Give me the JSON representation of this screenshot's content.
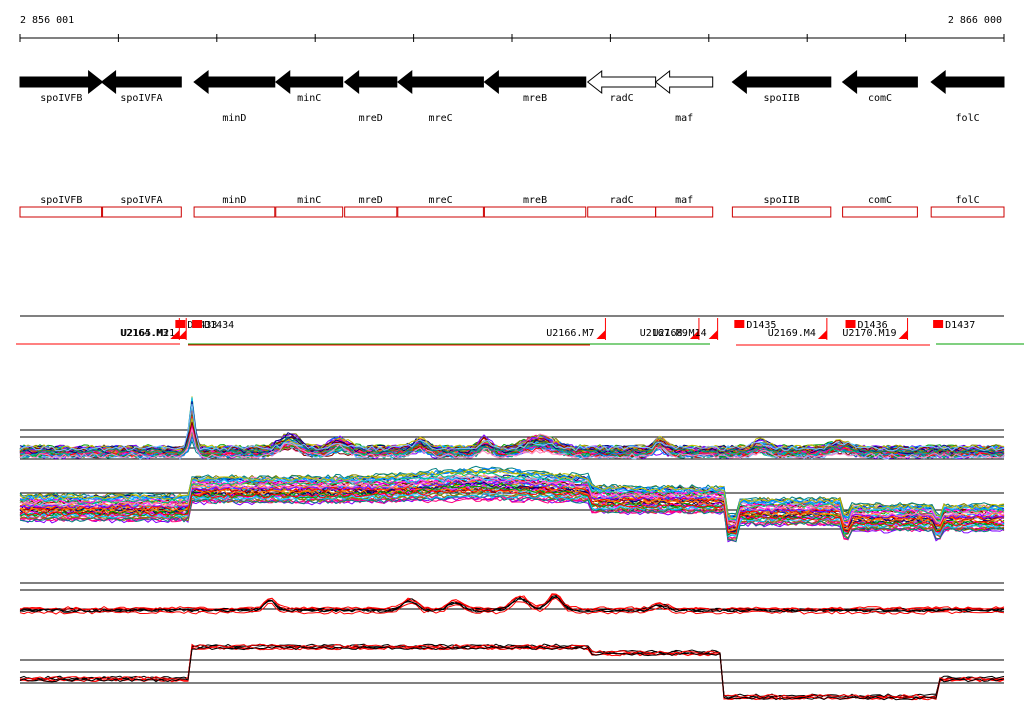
{
  "ruler": {
    "start_label": "2 856 001",
    "end_label": "2 866 000",
    "start": 2856001,
    "end": 2866000
  },
  "genes": [
    {
      "name": "spoIVFB",
      "strand": "+",
      "start": 2856001,
      "end": 2856840,
      "label_row": 0
    },
    {
      "name": "spoIVFA",
      "strand": "-",
      "start": 2856830,
      "end": 2857640,
      "label_row": 0
    },
    {
      "name": "minD",
      "strand": "-",
      "start": 2857770,
      "end": 2858590,
      "label_row": 1
    },
    {
      "name": "minC",
      "strand": "-",
      "start": 2858600,
      "end": 2859280,
      "label_row": 0
    },
    {
      "name": "mreD",
      "strand": "-",
      "start": 2859300,
      "end": 2859830,
      "label_row": 1
    },
    {
      "name": "mreC",
      "strand": "-",
      "start": 2859840,
      "end": 2860710,
      "label_row": 1
    },
    {
      "name": "mreB",
      "strand": "-",
      "start": 2860720,
      "end": 2861750,
      "label_row": 0
    },
    {
      "name": "radC",
      "strand": "-",
      "start": 2861770,
      "end": 2862460,
      "label_row": 0,
      "hollow": true
    },
    {
      "name": "maf",
      "strand": "-",
      "start": 2862460,
      "end": 2863040,
      "label_row": 1,
      "hollow": true
    },
    {
      "name": "spoIIB",
      "strand": "-",
      "start": 2863240,
      "end": 2864240,
      "label_row": 0
    },
    {
      "name": "comC",
      "strand": "-",
      "start": 2864360,
      "end": 2865120,
      "label_row": 0
    },
    {
      "name": "folC",
      "strand": "-",
      "start": 2865260,
      "end": 2866000,
      "label_row": 1
    }
  ],
  "features": [
    {
      "name": "U2165.M21",
      "type": "U",
      "pos": 2857690
    },
    {
      "name": "D1433",
      "type": "D",
      "pos": 2857600
    },
    {
      "name": "U2164.M3",
      "type": "U",
      "pos": 2857620
    },
    {
      "name": "D1434",
      "type": "D",
      "pos": 2857770
    },
    {
      "name": "U2166.M7",
      "type": "U",
      "pos": 2861950
    },
    {
      "name": "U2167.M9",
      "type": "U",
      "pos": 2862900
    },
    {
      "name": "U2168.M14",
      "type": "U",
      "pos": 2863090
    },
    {
      "name": "D1435",
      "type": "D",
      "pos": 2863280
    },
    {
      "name": "U2169.M4",
      "type": "U",
      "pos": 2864200
    },
    {
      "name": "D1436",
      "type": "D",
      "pos": 2864410
    },
    {
      "name": "U2170.M19",
      "type": "U",
      "pos": 2865020
    },
    {
      "name": "D1437",
      "type": "D",
      "pos": 2865300
    }
  ],
  "colors": {
    "gene_fill": "#000000",
    "gene_hollow": "#ffffff",
    "annotation_box": "#cc0000",
    "feature_mark": "#ff0000",
    "trace_palette": [
      "#ff00ff",
      "#00c0ff",
      "#ff8000",
      "#00a000",
      "#ff0000",
      "#8000ff",
      "#0080ff",
      "#c0c000",
      "#ff0080",
      "#00c080",
      "#800000",
      "#000080",
      "#808000",
      "#008080",
      "#ff80c0",
      "#80c0ff"
    ]
  }
}
